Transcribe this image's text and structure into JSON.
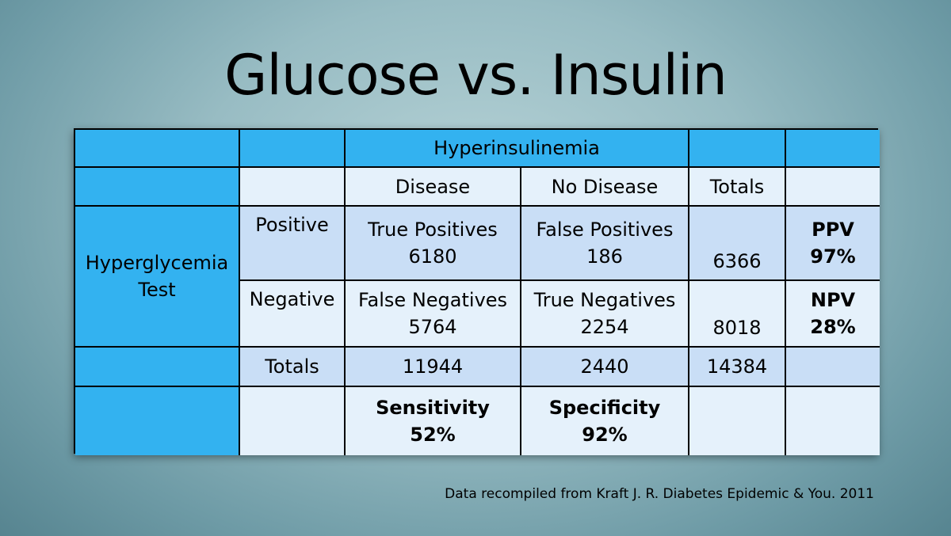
{
  "title": "Glucose vs. Insulin",
  "table": {
    "header_group": "Hyperinsulinemia",
    "col_disease": "Disease",
    "col_no_disease": "No Disease",
    "col_totals": "Totals",
    "row_group_line1": "Hyperglycemia",
    "row_group_line2": "Test",
    "row_positive": "Positive",
    "row_negative": "Negative",
    "row_totals": "Totals",
    "tp_label": "True Positives",
    "tp_value": "6180",
    "fp_label": "False Positives",
    "fp_value": "186",
    "pos_total": "6366",
    "ppv_label": "PPV",
    "ppv_value": "97%",
    "fn_label": "False Negatives",
    "fn_value": "5764",
    "tn_label": "True Negatives",
    "tn_value": "2254",
    "neg_total": "8018",
    "npv_label": "NPV",
    "npv_value": "28%",
    "disease_total": "11944",
    "no_disease_total": "2440",
    "grand_total": "14384",
    "sensitivity_label": "Sensitivity",
    "sensitivity_value": "52%",
    "specificity_label": "Specificity",
    "specificity_value": "92%"
  },
  "footnote": "Data recompiled from Kraft J. R. Diabetes Epidemic & You. 2011",
  "colors": {
    "header_blue": "#33b2f0",
    "cell_light": "#e5f1fb",
    "cell_mid": "#c9def6"
  }
}
